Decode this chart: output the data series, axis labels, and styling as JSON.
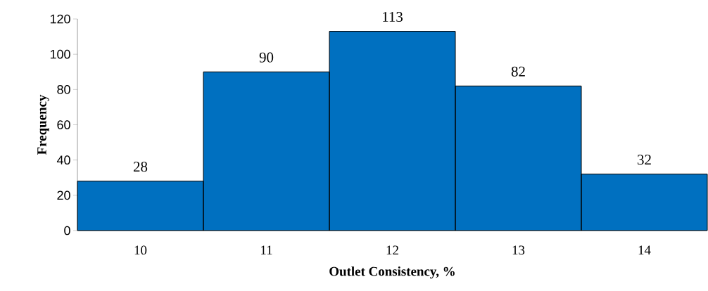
{
  "chart_data": {
    "type": "bar",
    "xlabel": "Outlet Consistency, %",
    "ylabel": "Frequency",
    "categories": [
      "10",
      "11",
      "12",
      "13",
      "14"
    ],
    "values": [
      28,
      90,
      113,
      82,
      32
    ],
    "color": "#0070c0",
    "data_labels": true,
    "grid": false,
    "ylim": [
      0,
      120
    ],
    "yticks": [
      0,
      20,
      40,
      60,
      80,
      100,
      120
    ]
  }
}
